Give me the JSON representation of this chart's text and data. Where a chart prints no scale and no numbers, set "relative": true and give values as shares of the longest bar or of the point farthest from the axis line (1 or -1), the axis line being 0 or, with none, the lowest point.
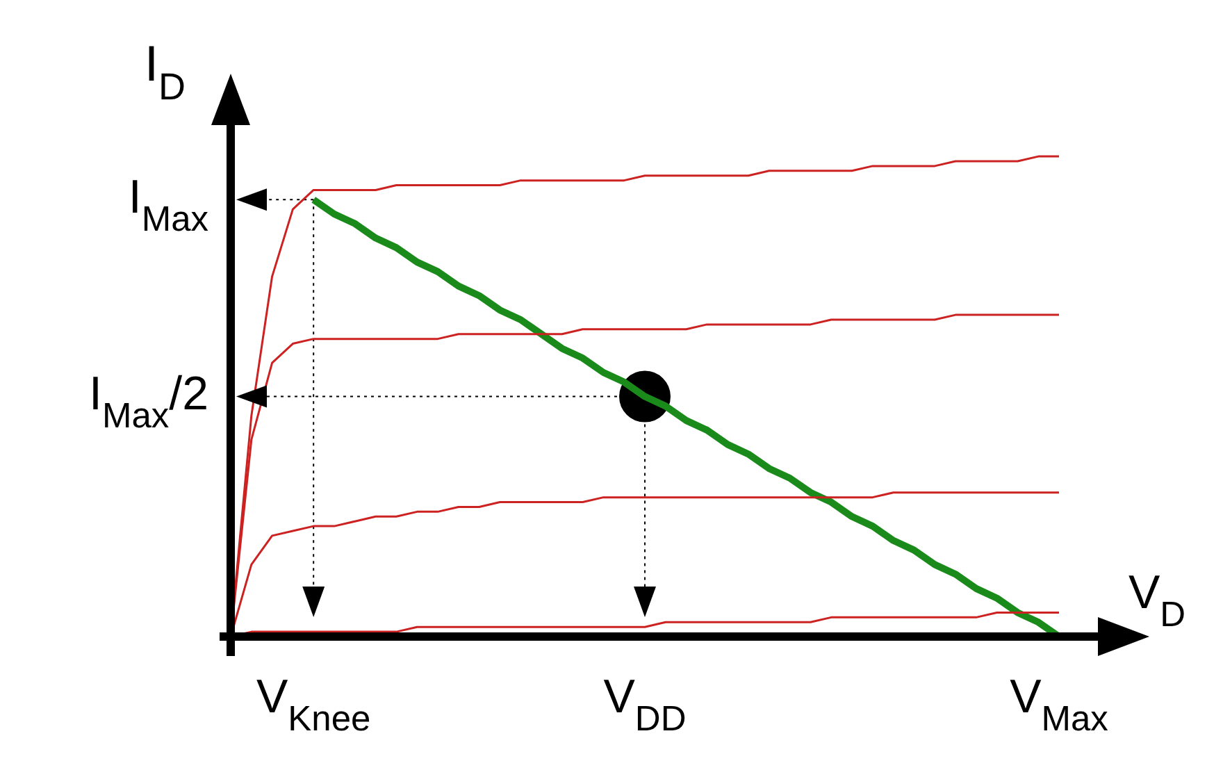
{
  "chart_data": {
    "type": "line",
    "relative": true,
    "xlabel": "V$_{D}$",
    "ylabel": "I$_{D}$",
    "categories": [
      null,
      null,
      null,
      null,
      "V$_{Knee}$",
      null,
      null,
      null,
      null,
      null,
      null,
      null,
      null,
      null,
      null,
      null,
      null,
      null,
      null,
      null,
      "V$_{DD}$",
      null,
      null,
      null,
      null,
      null,
      null,
      null,
      null,
      null,
      null,
      null,
      null,
      null,
      null,
      null,
      null,
      null,
      null,
      null,
      "V$_{Max}$"
    ],
    "ref_lines": [
      {
        "axis": "y",
        "value": 0.91,
        "label": "I$_{Max}$",
        "color": "#000000",
        "line_style": "dotted"
      },
      {
        "axis": "y",
        "value": 0.5,
        "label": "I$_{Max}$/2",
        "color": "#000000",
        "line_style": "dotted"
      },
      {
        "axis": "x",
        "value": "V$_{Knee}$",
        "color": "#000000",
        "line_style": "dotted"
      },
      {
        "axis": "x",
        "value": "V$_{DD}$",
        "color": "#000000",
        "line_style": "dotted"
      }
    ],
    "grid": false,
    "legend": false,
    "marker": "none",
    "line_style": "solid",
    "series": [
      {
        "color": "#cc2222",
        "values": [
          0,
          0.46,
          0.75,
          0.89,
          0.93,
          0.93,
          0.93,
          0.93,
          0.94,
          0.94,
          0.94,
          0.94,
          0.94,
          0.94,
          0.95,
          0.95,
          0.95,
          0.95,
          0.95,
          0.95,
          0.96,
          0.96,
          0.96,
          0.96,
          0.96,
          0.96,
          0.97,
          0.97,
          0.97,
          0.97,
          0.97,
          0.98,
          0.98,
          0.98,
          0.98,
          0.99,
          0.99,
          0.99,
          0.99,
          1,
          1
        ]
      },
      {
        "color": "#cc2222",
        "values": [
          0,
          0.41,
          0.57,
          0.61,
          0.62,
          0.62,
          0.62,
          0.62,
          0.62,
          0.62,
          0.62,
          0.63,
          0.63,
          0.63,
          0.63,
          0.63,
          0.63,
          0.64,
          0.64,
          0.64,
          0.64,
          0.64,
          0.64,
          0.65,
          0.65,
          0.65,
          0.65,
          0.65,
          0.65,
          0.66,
          0.66,
          0.66,
          0.66,
          0.66,
          0.66,
          0.67,
          0.67,
          0.67,
          0.67,
          0.67,
          0.67
        ]
      },
      {
        "color": "#cc2222",
        "values": [
          0,
          0.15,
          0.21,
          0.22,
          0.23,
          0.23,
          0.24,
          0.25,
          0.25,
          0.26,
          0.26,
          0.27,
          0.27,
          0.28,
          0.28,
          0.28,
          0.28,
          0.28,
          0.29,
          0.29,
          0.29,
          0.29,
          0.29,
          0.29,
          0.29,
          0.29,
          0.29,
          0.29,
          0.29,
          0.29,
          0.29,
          0.29,
          0.3,
          0.3,
          0.3,
          0.3,
          0.3,
          0.3,
          0.3,
          0.3,
          0.3
        ]
      },
      {
        "color": "#cc2222",
        "values": [
          0,
          0.01,
          0.01,
          0.01,
          0.01,
          0.01,
          0.01,
          0.01,
          0.01,
          0.02,
          0.02,
          0.02,
          0.02,
          0.02,
          0.02,
          0.02,
          0.02,
          0.02,
          0.02,
          0.02,
          0.02,
          0.03,
          0.03,
          0.03,
          0.03,
          0.03,
          0.03,
          0.03,
          0.03,
          0.04,
          0.04,
          0.04,
          0.04,
          0.04,
          0.04,
          0.04,
          0.04,
          0.05,
          0.05,
          0.05,
          0.05
        ]
      },
      {
        "color": "#1a8a1a",
        "values": [
          null,
          null,
          null,
          null,
          0.91,
          0.88,
          0.86,
          0.83,
          0.81,
          0.78,
          0.76,
          0.73,
          0.71,
          0.68,
          0.66,
          0.63,
          0.6,
          0.58,
          0.55,
          0.53,
          0.5,
          0.48,
          0.45,
          0.43,
          0.4,
          0.38,
          0.35,
          0.33,
          0.3,
          0.28,
          0.25,
          0.23,
          0.2,
          0.18,
          0.15,
          0.13,
          0.1,
          0.08,
          0.05,
          0.03,
          0
        ]
      },
      {
        "type": "scatter",
        "marker": "circle",
        "color": "#000000",
        "values": [
          null,
          null,
          null,
          null,
          null,
          null,
          null,
          null,
          null,
          null,
          null,
          null,
          null,
          null,
          null,
          null,
          null,
          null,
          null,
          null,
          0.5,
          null,
          null,
          null,
          null,
          null,
          null,
          null,
          null,
          null,
          null,
          null,
          null,
          null,
          null,
          null,
          null,
          null,
          null,
          null,
          null
        ]
      }
    ]
  }
}
